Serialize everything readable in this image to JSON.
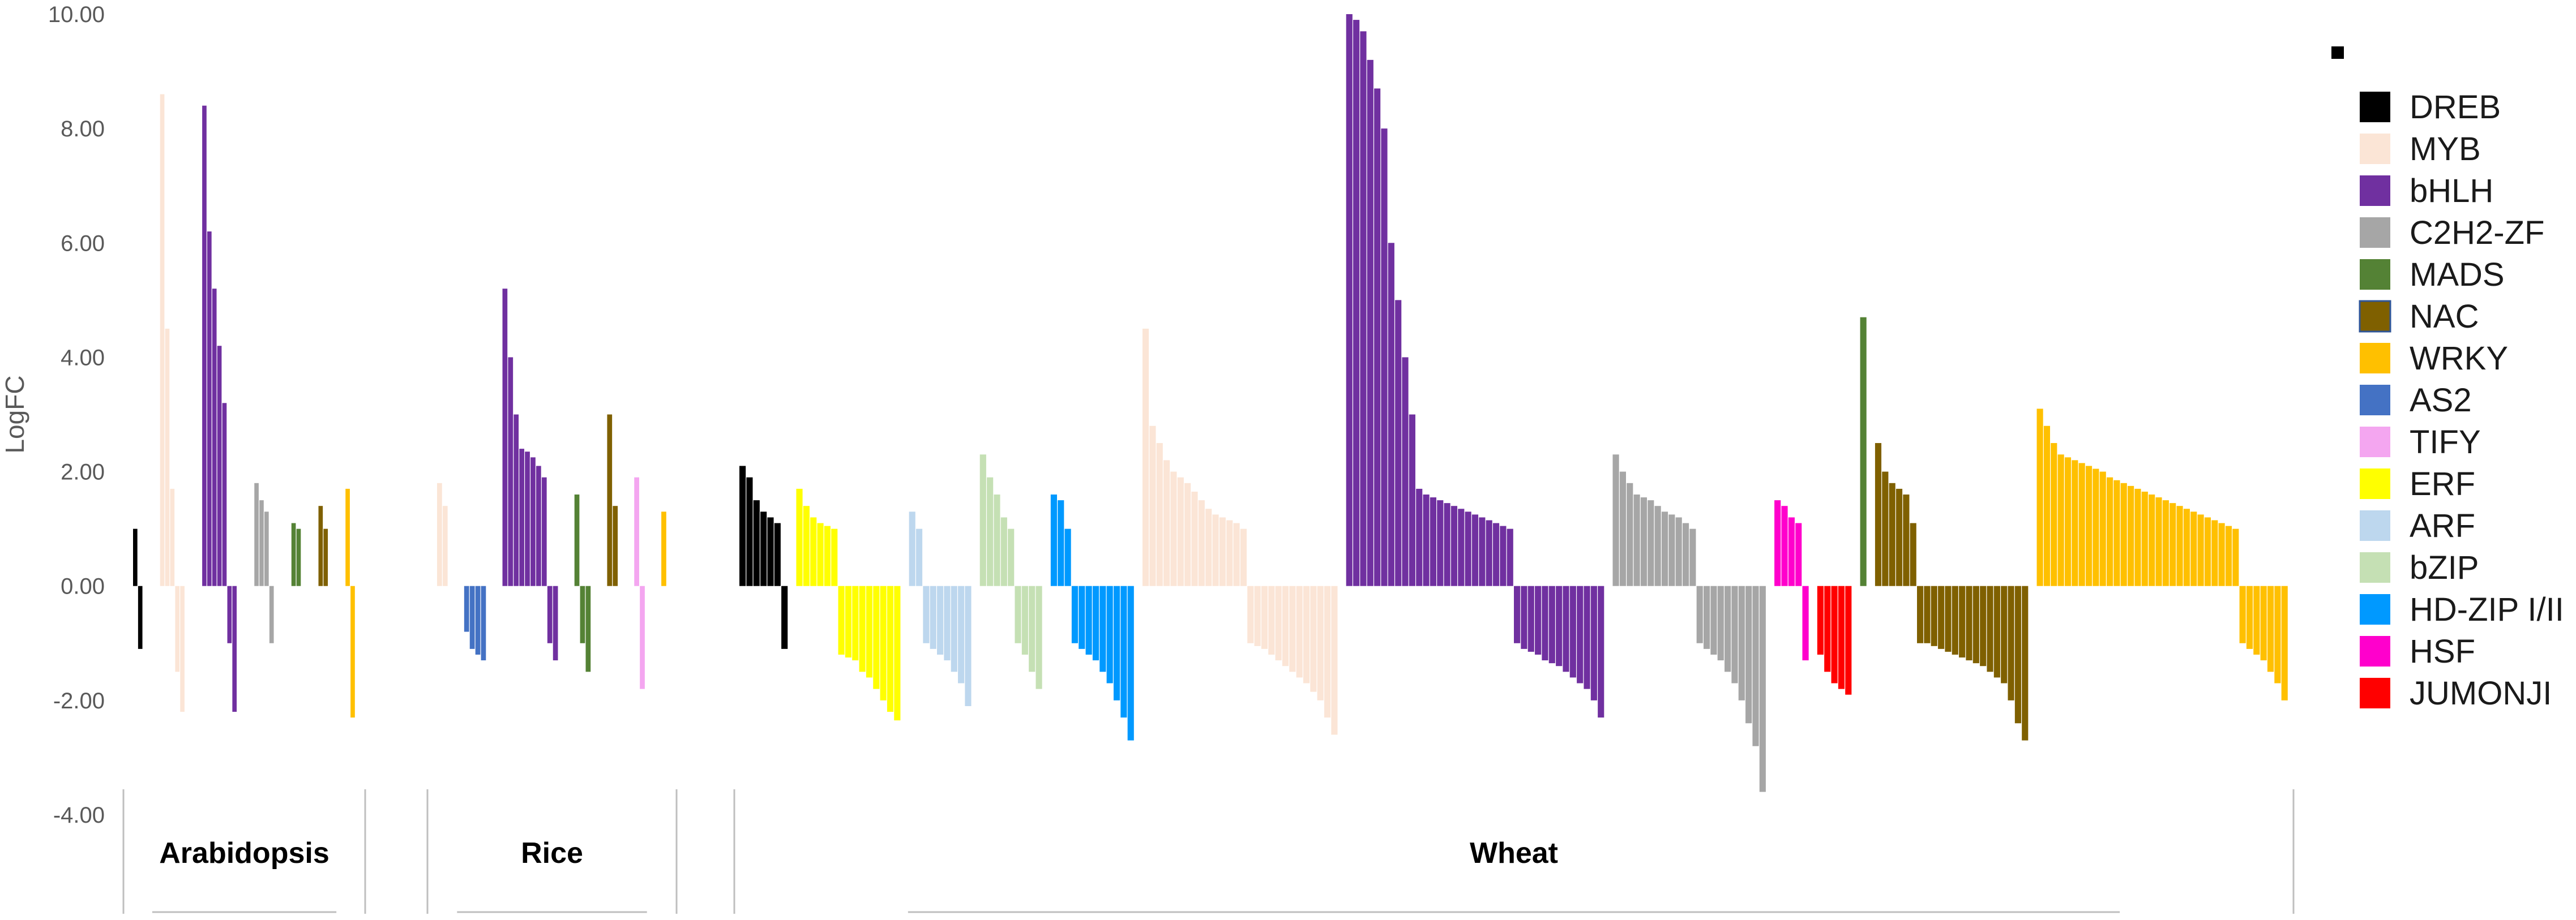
{
  "chart_data": {
    "type": "bar",
    "ylabel": "LogFC",
    "ylim": [
      -4,
      10
    ],
    "yticks": [
      "10.00",
      "8.00",
      "6.00",
      "4.00",
      "2.00",
      "0.00",
      "-2.00",
      "-4.00"
    ],
    "ytick_values": [
      10,
      8,
      6,
      4,
      2,
      0,
      -2,
      -4
    ],
    "grid": false,
    "legend_position": "right",
    "legend": [
      {
        "name": "DREB",
        "color": "#000000"
      },
      {
        "name": "MYB",
        "color": "#FBE5D6"
      },
      {
        "name": "bHLH",
        "color": "#7030A0"
      },
      {
        "name": "C2H2-ZF",
        "color": "#A6A6A6"
      },
      {
        "name": "MADS",
        "color": "#548235"
      },
      {
        "name": "NAC",
        "color": "#7F6000"
      },
      {
        "name": "WRKY",
        "color": "#FFC000"
      },
      {
        "name": "AS2",
        "color": "#4472C4"
      },
      {
        "name": "TIFY",
        "color": "#F4A6F0"
      },
      {
        "name": "ERF",
        "color": "#FFFF00"
      },
      {
        "name": "ARF",
        "color": "#BDD7EE"
      },
      {
        "name": "bZIP",
        "color": "#C5E0B4"
      },
      {
        "name": "HD-ZIP I/II",
        "color": "#0099FF"
      },
      {
        "name": "HSF",
        "color": "#FF00CC"
      },
      {
        "name": "JUMONJI",
        "color": "#FF0000"
      }
    ],
    "groups": [
      {
        "name": "Arabidopsis",
        "families": [
          {
            "family": "DREB",
            "values": [
              1.0,
              -1.1
            ]
          },
          {
            "family": "MYB",
            "values": [
              8.6,
              4.5,
              1.7,
              -1.5,
              -2.2
            ]
          },
          {
            "family": "bHLH",
            "values": [
              8.4,
              6.2,
              5.2,
              4.2,
              3.2,
              -1.0,
              -2.2
            ]
          },
          {
            "family": "C2H2-ZF",
            "values": [
              1.8,
              1.5,
              1.3,
              -1.0
            ]
          },
          {
            "family": "MADS",
            "values": [
              1.1,
              1.0
            ]
          },
          {
            "family": "NAC",
            "values": [
              1.4,
              1.0
            ]
          },
          {
            "family": "WRKY",
            "values": [
              1.7,
              -2.3
            ]
          }
        ]
      },
      {
        "name": "Rice",
        "families": [
          {
            "family": "MYB",
            "values": [
              1.8,
              1.4
            ]
          },
          {
            "family": "AS2",
            "values": [
              -0.8,
              -1.1,
              -1.2,
              -1.3
            ]
          },
          {
            "family": "bHLH",
            "values": [
              5.2,
              4.0,
              3.0,
              2.4,
              2.35,
              2.25,
              2.1,
              1.9,
              -1.0,
              -1.3
            ]
          },
          {
            "family": "MADS",
            "values": [
              1.6,
              -1.0,
              -1.5
            ]
          },
          {
            "family": "NAC",
            "values": [
              3.0,
              1.4
            ]
          },
          {
            "family": "TIFY",
            "values": [
              1.9,
              -1.8
            ]
          },
          {
            "family": "WRKY",
            "values": [
              1.3
            ]
          }
        ]
      },
      {
        "name": "Wheat",
        "families": [
          {
            "family": "DREB",
            "values": [
              2.1,
              1.9,
              1.5,
              1.3,
              1.2,
              1.1,
              -1.1
            ]
          },
          {
            "family": "ERF",
            "values": [
              1.7,
              1.4,
              1.2,
              1.1,
              1.05,
              1.0,
              -1.2,
              -1.25,
              -1.3,
              -1.5,
              -1.6,
              -1.8,
              -2.0,
              -2.2,
              -2.35
            ]
          },
          {
            "family": "ARF",
            "values": [
              1.3,
              1.0,
              -1.0,
              -1.1,
              -1.2,
              -1.3,
              -1.5,
              -1.7,
              -2.1
            ]
          },
          {
            "family": "bZIP",
            "values": [
              2.3,
              1.9,
              1.6,
              1.2,
              1.0,
              -1.0,
              -1.2,
              -1.5,
              -1.8
            ]
          },
          {
            "family": "HD-ZIP I/II",
            "values": [
              1.6,
              1.5,
              1.0,
              -1.0,
              -1.1,
              -1.2,
              -1.3,
              -1.5,
              -1.7,
              -2.0,
              -2.3,
              -2.7
            ]
          },
          {
            "family": "MYB",
            "values": [
              4.5,
              2.8,
              2.5,
              2.2,
              2.0,
              1.9,
              1.8,
              1.65,
              1.5,
              1.35,
              1.25,
              1.2,
              1.15,
              1.1,
              1.0,
              -1.0,
              -1.05,
              -1.1,
              -1.2,
              -1.3,
              -1.4,
              -1.5,
              -1.6,
              -1.7,
              -1.85,
              -2.0,
              -2.3,
              -2.6
            ]
          },
          {
            "family": "bHLH",
            "values": [
              10.0,
              9.9,
              9.7,
              9.2,
              8.7,
              8.0,
              6.0,
              5.0,
              4.0,
              3.0,
              1.7,
              1.6,
              1.55,
              1.5,
              1.45,
              1.4,
              1.35,
              1.3,
              1.25,
              1.2,
              1.15,
              1.1,
              1.05,
              1.0,
              -1.0,
              -1.1,
              -1.15,
              -1.2,
              -1.3,
              -1.35,
              -1.4,
              -1.5,
              -1.6,
              -1.7,
              -1.8,
              -2.0,
              -2.3
            ]
          },
          {
            "family": "C2H2-ZF",
            "values": [
              2.3,
              2.0,
              1.8,
              1.6,
              1.55,
              1.5,
              1.4,
              1.3,
              1.25,
              1.2,
              1.1,
              1.0,
              -1.0,
              -1.1,
              -1.2,
              -1.3,
              -1.5,
              -1.7,
              -2.0,
              -2.4,
              -2.8,
              -3.6
            ]
          },
          {
            "family": "HSF",
            "values": [
              1.5,
              1.4,
              1.2,
              1.1,
              -1.3
            ]
          },
          {
            "family": "JUMONJI",
            "values": [
              -1.2,
              -1.5,
              -1.7,
              -1.8,
              -1.9
            ]
          },
          {
            "family": "MADS",
            "values": [
              4.7
            ]
          },
          {
            "family": "NAC",
            "values": [
              2.5,
              2.0,
              1.8,
              1.7,
              1.6,
              1.1,
              -1.0,
              -1.0,
              -1.05,
              -1.1,
              -1.15,
              -1.2,
              -1.25,
              -1.3,
              -1.35,
              -1.4,
              -1.5,
              -1.6,
              -1.7,
              -2.0,
              -2.4,
              -2.7
            ]
          },
          {
            "family": "WRKY",
            "values": [
              3.1,
              2.8,
              2.5,
              2.3,
              2.25,
              2.2,
              2.15,
              2.1,
              2.05,
              2.0,
              1.9,
              1.85,
              1.8,
              1.75,
              1.7,
              1.65,
              1.6,
              1.55,
              1.5,
              1.45,
              1.4,
              1.35,
              1.3,
              1.25,
              1.2,
              1.15,
              1.1,
              1.05,
              1.0,
              -1.0,
              -1.1,
              -1.2,
              -1.3,
              -1.5,
              -1.7,
              -2.0
            ]
          }
        ]
      }
    ]
  }
}
